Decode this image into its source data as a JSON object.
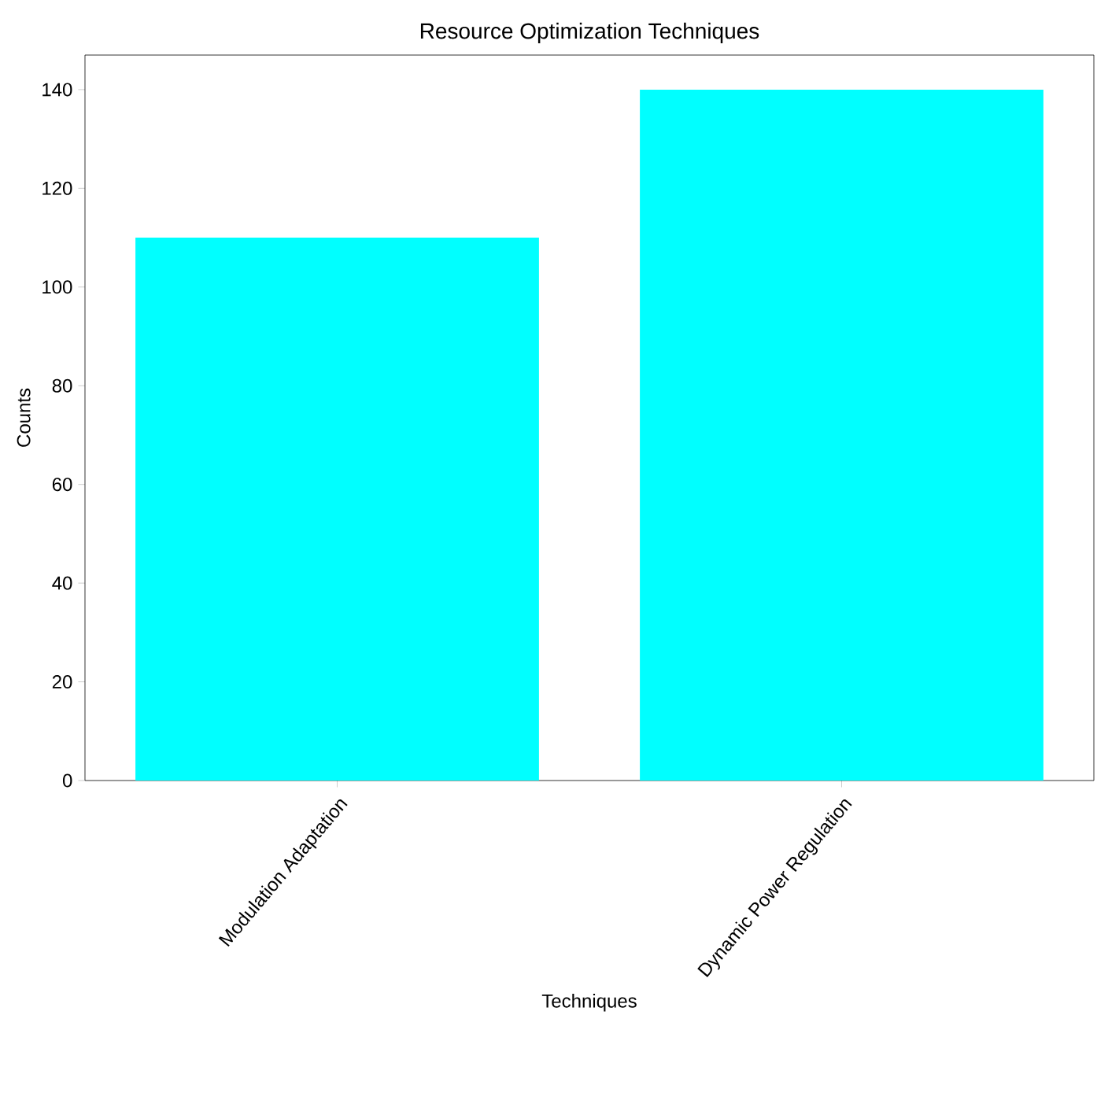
{
  "chart_data": {
    "type": "bar",
    "title": "Resource Optimization Techniques",
    "xlabel": "Techniques",
    "ylabel": "Counts",
    "categories": [
      "Modulation Adaptation",
      "Dynamic Power Regulation"
    ],
    "values": [
      110,
      140
    ],
    "color": "#00ffff",
    "ylim": [
      0,
      147
    ],
    "yticks": [
      0,
      20,
      40,
      60,
      80,
      100,
      120,
      140
    ]
  }
}
